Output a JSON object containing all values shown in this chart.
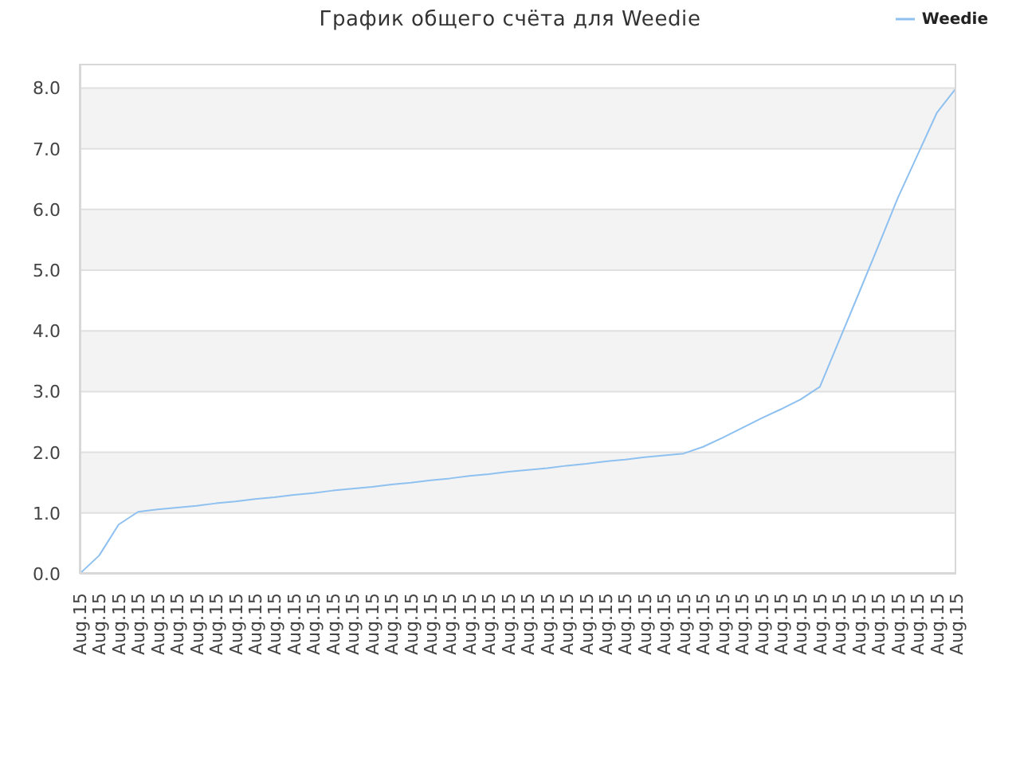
{
  "chart_data": {
    "type": "line",
    "title": "График общего счёта для Weedie",
    "categories": [
      "Aug.15",
      "Aug.15",
      "Aug.15",
      "Aug.15",
      "Aug.15",
      "Aug.15",
      "Aug.15",
      "Aug.15",
      "Aug.15",
      "Aug.15",
      "Aug.15",
      "Aug.15",
      "Aug.15",
      "Aug.15",
      "Aug.15",
      "Aug.15",
      "Aug.15",
      "Aug.15",
      "Aug.15",
      "Aug.15",
      "Aug.15",
      "Aug.15",
      "Aug.15",
      "Aug.15",
      "Aug.15",
      "Aug.15",
      "Aug.15",
      "Aug.15",
      "Aug.15",
      "Aug.15",
      "Aug.15",
      "Aug.15",
      "Aug.15",
      "Aug.15",
      "Aug.15",
      "Aug.15",
      "Aug.15",
      "Aug.15",
      "Aug.15",
      "Aug.15",
      "Aug.15",
      "Aug.15",
      "Aug.15",
      "Aug.15",
      "Aug.15",
      "Aug.15"
    ],
    "series": [
      {
        "name": "Weedie",
        "color": "#8ec0f0",
        "values": [
          0,
          0.3,
          0.81,
          1.02,
          1.06,
          1.09,
          1.12,
          1.16,
          1.19,
          1.23,
          1.26,
          1.3,
          1.33,
          1.37,
          1.4,
          1.43,
          1.47,
          1.5,
          1.54,
          1.57,
          1.61,
          1.64,
          1.68,
          1.71,
          1.74,
          1.78,
          1.81,
          1.85,
          1.88,
          1.92,
          1.95,
          1.98,
          2.09,
          2.24,
          2.4,
          2.56,
          2.71,
          2.87,
          3.08,
          3.85,
          4.62,
          5.4,
          6.19,
          6.89,
          7.59,
          8
        ]
      }
    ],
    "ylim": [
      0,
      8.4
    ],
    "yticks": [
      {
        "value": 0,
        "label": "0.0"
      },
      {
        "value": 1,
        "label": "1.0"
      },
      {
        "value": 2,
        "label": "2.0"
      },
      {
        "value": 3,
        "label": "3.0"
      },
      {
        "value": 4,
        "label": "4.0"
      },
      {
        "value": 5,
        "label": "5.0"
      },
      {
        "value": 6,
        "label": "6.0"
      },
      {
        "value": 7,
        "label": "7.0"
      },
      {
        "value": 8,
        "label": "8.0"
      }
    ],
    "grid": "y",
    "legend": "top right"
  }
}
